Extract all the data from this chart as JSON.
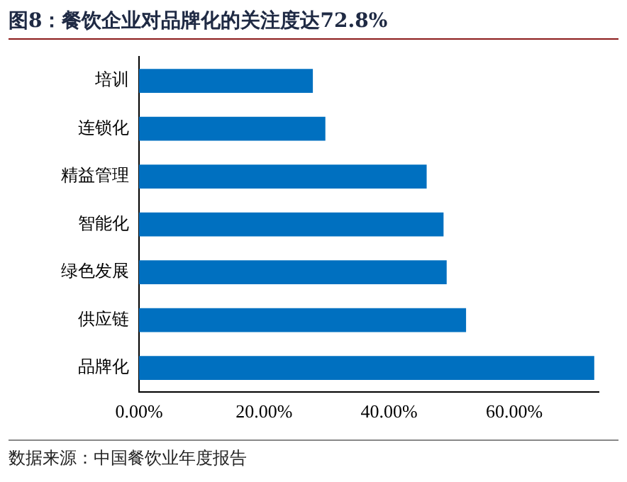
{
  "chart_data": {
    "type": "bar",
    "orientation": "horizontal",
    "title": "图8：餐饮企业对品牌化的关注度达72.8%",
    "categories": [
      "培训",
      "连锁化",
      "精益管理",
      "智能化",
      "绿色发展",
      "供应链",
      "品牌化"
    ],
    "values": [
      27.8,
      29.8,
      46.0,
      48.7,
      49.2,
      52.3,
      72.8
    ],
    "color": "#0070c0",
    "xlim": [
      0,
      73.5
    ],
    "xticks": [
      {
        "value": 0,
        "label": "0.00%"
      },
      {
        "value": 20,
        "label": "20.00%"
      },
      {
        "value": 40,
        "label": "40.00%"
      },
      {
        "value": 60,
        "label": "60.00%"
      }
    ],
    "grid": false,
    "legend": false,
    "annotations": [
      "数据来源：中国餐饮业年度报告"
    ]
  }
}
